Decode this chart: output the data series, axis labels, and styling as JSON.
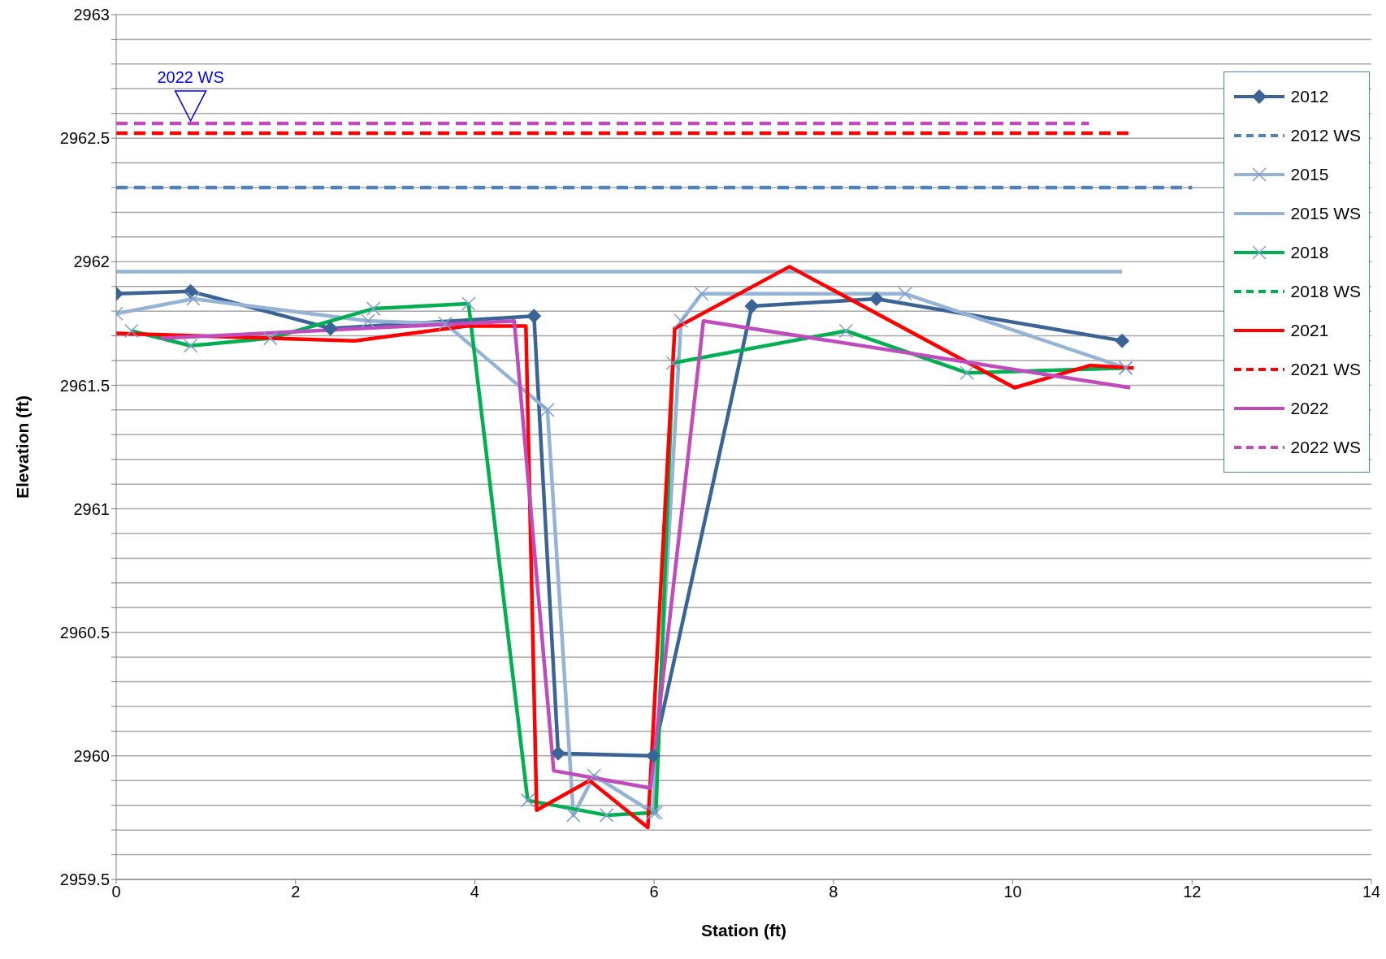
{
  "chart_data": {
    "type": "line",
    "xlabel": "Station (ft)",
    "ylabel": "Elevation (ft)",
    "xlim": [
      0,
      14
    ],
    "xticks": [
      0,
      2,
      4,
      6,
      8,
      10,
      12,
      14
    ],
    "ylim": [
      2959.5,
      2963
    ],
    "yticks": [
      2959.5,
      {
        "value": 2959.6,
        "label": null
      },
      {
        "value": 2959.7,
        "label": null
      },
      {
        "value": 2959.8,
        "label": null
      },
      {
        "value": 2959.9,
        "label": null
      },
      2960,
      {
        "value": 2960.1,
        "label": null
      },
      {
        "value": 2960.2,
        "label": null
      },
      {
        "value": 2960.3,
        "label": null
      },
      {
        "value": 2960.4,
        "label": null
      },
      2960.5,
      {
        "value": 2960.6,
        "label": null
      },
      {
        "value": 2960.7,
        "label": null
      },
      {
        "value": 2960.8,
        "label": null
      },
      {
        "value": 2960.9,
        "label": null
      },
      2961,
      {
        "value": 2961.1,
        "label": null
      },
      {
        "value": 2961.2,
        "label": null
      },
      {
        "value": 2961.3,
        "label": null
      },
      {
        "value": 2961.4,
        "label": null
      },
      2961.5,
      {
        "value": 2961.6,
        "label": null
      },
      {
        "value": 2961.7,
        "label": null
      },
      {
        "value": 2961.8,
        "label": null
      },
      {
        "value": 2961.9,
        "label": null
      },
      2962,
      {
        "value": 2962.1,
        "label": null
      },
      {
        "value": 2962.2,
        "label": null
      },
      {
        "value": 2962.3,
        "label": null
      },
      {
        "value": 2962.4,
        "label": null
      },
      2962.5,
      {
        "value": 2962.6,
        "label": null
      },
      {
        "value": 2962.7,
        "label": null
      },
      {
        "value": 2962.8,
        "label": null
      },
      {
        "value": 2962.9,
        "label": null
      },
      2963
    ],
    "grid": "y",
    "legend": "top right",
    "annotations": [
      {
        "text": "2022 WS",
        "x": 0.83,
        "y": 2962.56
      }
    ],
    "series": [
      {
        "name": "2012",
        "color": "#3a6496",
        "marker": "diamond",
        "line_style": "solid",
        "x": [
          0,
          0.83,
          2.39,
          4.66,
          4.93,
          5.99,
          7.09,
          8.48,
          11.22
        ],
        "values": [
          2961.87,
          2961.88,
          2961.73,
          2961.78,
          2960.01,
          2960.0,
          2961.82,
          2961.85,
          2961.68
        ]
      },
      {
        "name": "2012 WS",
        "color": "#4f81bd",
        "marker": "none",
        "line_style": "dashed",
        "x": [
          0,
          12
        ],
        "values": [
          2962.3,
          2962.3
        ]
      },
      {
        "name": "2015",
        "color": "#95b3d7",
        "marker": "cross",
        "line_style": "solid",
        "x": [
          0,
          0.86,
          2.81,
          3.67,
          4.81,
          5.1,
          5.33,
          5.99,
          6.3,
          6.53,
          8.8,
          11.26
        ],
        "values": [
          2961.79,
          2961.85,
          2961.76,
          2961.75,
          2961.4,
          2959.76,
          2959.92,
          2959.77,
          2961.76,
          2961.87,
          2961.87,
          2961.57
        ]
      },
      {
        "name": "2015 WS",
        "color": "#95b3d7",
        "marker": "none",
        "line_style": "solid",
        "x": [
          0,
          11.22
        ],
        "values": [
          2961.96,
          2961.96
        ]
      },
      {
        "name": "2018",
        "color": "#00b050",
        "marker": "cross",
        "line_style": "solid",
        "x": [
          0.17,
          0.83,
          1.72,
          2.87,
          3.93,
          4.59,
          5.47,
          6.02,
          6.21,
          8.14,
          9.49,
          11.26
        ],
        "values": [
          2961.72,
          2961.66,
          2961.69,
          2961.81,
          2961.83,
          2959.82,
          2959.76,
          2959.77,
          2961.59,
          2961.72,
          2961.55,
          2961.57
        ]
      },
      {
        "name": "2018 WS",
        "color": "#00b050",
        "marker": "none",
        "line_style": "dashed"
      },
      {
        "name": "2021",
        "color": "#ff0000",
        "marker": "none",
        "line_style": "solid",
        "x": [
          0,
          2.66,
          3.91,
          4.57,
          4.69,
          5.28,
          5.93,
          6.23,
          7.51,
          10.02,
          10.86,
          11.35
        ],
        "values": [
          2961.71,
          2961.68,
          2961.74,
          2961.74,
          2959.78,
          2959.9,
          2959.71,
          2961.73,
          2961.98,
          2961.49,
          2961.58,
          2961.57
        ]
      },
      {
        "name": "2021 WS",
        "color": "#ff0000",
        "marker": "none",
        "line_style": "dashed",
        "x": [
          0,
          11.35
        ],
        "values": [
          2962.52,
          2962.52
        ]
      },
      {
        "name": "2022",
        "color": "#c04bbd",
        "marker": "none",
        "line_style": "solid",
        "x": [
          0.5,
          4.44,
          4.88,
          5.96,
          6.55,
          11.31
        ],
        "values": [
          2961.69,
          2961.76,
          2959.94,
          2959.87,
          2961.76,
          2961.49
        ]
      },
      {
        "name": "2022 WS",
        "color": "#c04bbd",
        "marker": "none",
        "line_style": "dashed",
        "x": [
          0,
          10.85
        ],
        "values": [
          2962.56,
          2962.56
        ]
      }
    ]
  }
}
